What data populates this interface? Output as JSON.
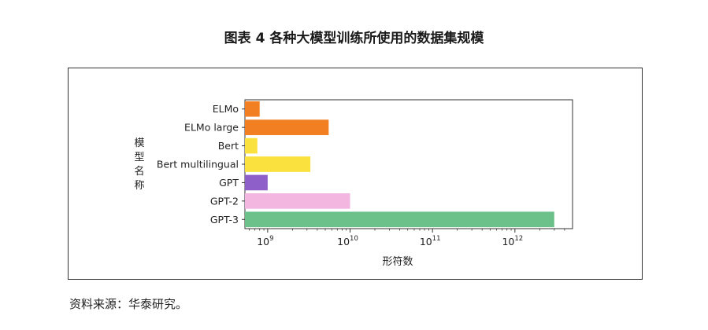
{
  "title": "图表 4 各种大模型训练所使用的数据集规模",
  "source": "资料来源：华泰研究。",
  "chart_data": {
    "type": "bar",
    "orientation": "horizontal",
    "x_scale": "log",
    "xlabel": "形符数",
    "ylabel": "模型名称",
    "xlim": [
      530000000,
      5000000000000
    ],
    "x_ticks": [
      {
        "value": 1000000000,
        "base": "10",
        "exp": "9"
      },
      {
        "value": 10000000000,
        "base": "10",
        "exp": "10"
      },
      {
        "value": 100000000000,
        "base": "10",
        "exp": "11"
      },
      {
        "value": 1000000000000,
        "base": "10",
        "exp": "12"
      }
    ],
    "categories": [
      "ELMo",
      "ELMo large",
      "Bert",
      "Bert multilingual",
      "GPT",
      "GPT-2",
      "GPT-3"
    ],
    "values": [
      800000000,
      5500000000,
      750000000,
      3300000000,
      1000000000,
      10000000000,
      3000000000000
    ],
    "colors": [
      "#f28022",
      "#f28022",
      "#fbe13d",
      "#fbe13d",
      "#8e5fc9",
      "#f2b6e0",
      "#6cc089"
    ],
    "grid": false,
    "legend": "none"
  }
}
